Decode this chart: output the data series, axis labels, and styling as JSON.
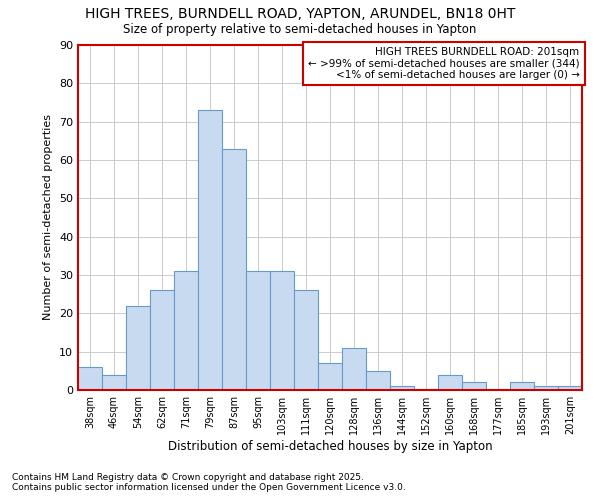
{
  "title": "HIGH TREES, BURNDELL ROAD, YAPTON, ARUNDEL, BN18 0HT",
  "subtitle": "Size of property relative to semi-detached houses in Yapton",
  "xlabel": "Distribution of semi-detached houses by size in Yapton",
  "ylabel": "Number of semi-detached properties",
  "bins": [
    "38sqm",
    "46sqm",
    "54sqm",
    "62sqm",
    "71sqm",
    "79sqm",
    "87sqm",
    "95sqm",
    "103sqm",
    "111sqm",
    "120sqm",
    "128sqm",
    "136sqm",
    "144sqm",
    "152sqm",
    "160sqm",
    "168sqm",
    "177sqm",
    "185sqm",
    "193sqm",
    "201sqm"
  ],
  "values": [
    6,
    4,
    22,
    26,
    31,
    73,
    63,
    31,
    31,
    26,
    7,
    11,
    5,
    1,
    0,
    4,
    2,
    0,
    2,
    1,
    1
  ],
  "bar_color": "#c8daf0",
  "bar_edge_color": "#6699cc",
  "background_color": "#ffffff",
  "grid_color": "#cccccc",
  "plot_border_color": "#cc0000",
  "annotation_box_color": "#cc0000",
  "annotation_title": "HIGH TREES BURNDELL ROAD: 201sqm",
  "annotation_line1": "← >99% of semi-detached houses are smaller (344)",
  "annotation_line2": "<1% of semi-detached houses are larger (0) →",
  "footnote1": "Contains HM Land Registry data © Crown copyright and database right 2025.",
  "footnote2": "Contains public sector information licensed under the Open Government Licence v3.0.",
  "ylim": [
    0,
    90
  ],
  "yticks": [
    0,
    10,
    20,
    30,
    40,
    50,
    60,
    70,
    80,
    90
  ]
}
